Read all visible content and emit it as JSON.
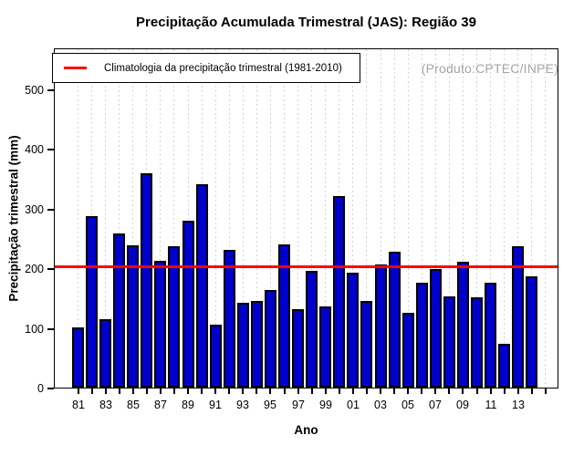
{
  "title": "Precipitação Acumulada Trimestral (JAS): Região 39",
  "watermark": "(Produto:CPTEC/INPE)",
  "legend": {
    "label": "Climatologia da precipitação trimestral (1981-2010)"
  },
  "axes": {
    "xlabel": "Ano",
    "ylabel": "Precipitação trimestral (mm)",
    "yticks": [
      0,
      100,
      200,
      300,
      400,
      500
    ],
    "xtick_labels_shown": [
      "81",
      "83",
      "85",
      "87",
      "89",
      "91",
      "93",
      "95",
      "97",
      "99",
      "01",
      "03",
      "05",
      "07",
      "09",
      "11",
      "13"
    ]
  },
  "colors": {
    "bar_fill": "#0000CC",
    "bar_border": "#000000",
    "climatology_line": "#FF0000",
    "gridline": "#D3D3D3",
    "watermark_text": "#A6A6A6"
  },
  "chart_data": {
    "type": "bar",
    "title": "Precipitação Acumulada Trimestral (JAS): Região 39",
    "xlabel": "Ano",
    "ylabel": "Precipitação trimestral (mm)",
    "categories": [
      "81",
      "82",
      "83",
      "84",
      "85",
      "86",
      "87",
      "88",
      "89",
      "90",
      "91",
      "92",
      "93",
      "94",
      "95",
      "96",
      "97",
      "98",
      "99",
      "00",
      "01",
      "02",
      "03",
      "04",
      "05",
      "06",
      "07",
      "08",
      "09",
      "10",
      "11",
      "12",
      "13",
      "14"
    ],
    "values": [
      100,
      287,
      115,
      258,
      238,
      359,
      212,
      236,
      279,
      340,
      105,
      230,
      142,
      145,
      164,
      240,
      132,
      196,
      136,
      320,
      193,
      145,
      206,
      227,
      125,
      176,
      199,
      153,
      210,
      151,
      175,
      73,
      236,
      187
    ],
    "climatology_line": {
      "value": 202,
      "label": "Climatologia da precipitação trimestral (1981-2010)"
    },
    "ylim": [
      0,
      570
    ],
    "yticks": [
      0,
      100,
      200,
      300,
      400,
      500
    ],
    "x_labels_every": 2,
    "grid": "vertical dotted line at every year",
    "legend_position": "top-left"
  }
}
